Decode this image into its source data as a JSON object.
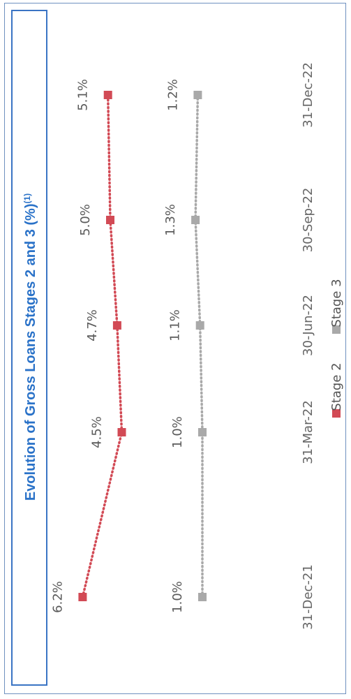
{
  "chart_data": {
    "type": "line",
    "title": "Evolution of Gross Loans Stages 2 and 3 (%)",
    "title_superscript": "(1)",
    "categories": [
      "31-Dec-21",
      "31-Mar-22",
      "30-Jun-22",
      "30-Sep-22",
      "31-Dec-22"
    ],
    "series": [
      {
        "name": "Stage 2",
        "values": [
          6.2,
          4.5,
          4.7,
          5.0,
          5.1
        ],
        "labels": [
          "6.2%",
          "4.5%",
          "4.7%",
          "5.0%",
          "5.1%"
        ],
        "color": "#d24a55",
        "line_style": "dotted"
      },
      {
        "name": "Stage 3",
        "values": [
          1.0,
          1.0,
          1.1,
          1.3,
          1.2
        ],
        "labels": [
          "1.0%",
          "1.0%",
          "1.1%",
          "1.3%",
          "1.2%"
        ],
        "color": "#a9a9a9",
        "line_style": "dotted"
      }
    ],
    "xlabel": "",
    "ylabel": "",
    "grid": false,
    "legend": "bottom",
    "orientation": "rotated 90 degrees counter-clockwise"
  }
}
